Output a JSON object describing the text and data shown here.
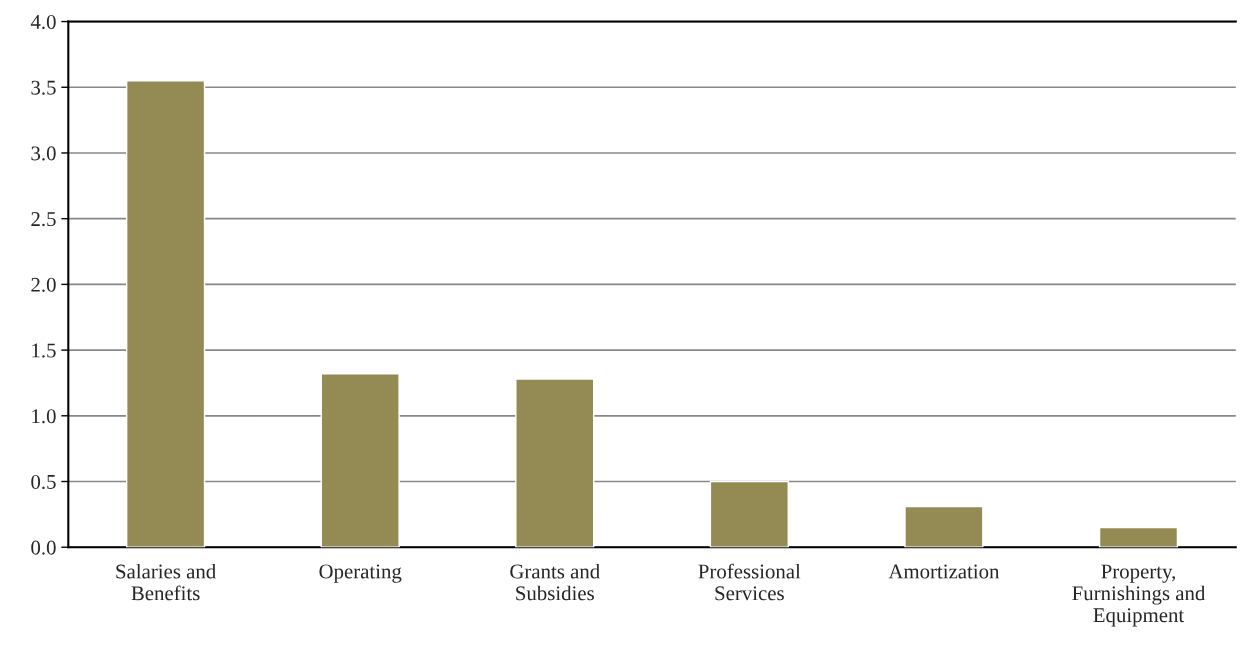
{
  "chart_data": {
    "type": "bar",
    "categories": [
      "Salaries and\nBenefits",
      "Operating",
      "Grants and\nSubsidies",
      "Professional\nServices",
      "Amortization",
      "Property,\nFurnishings and\nEquipment"
    ],
    "values": [
      3.55,
      1.32,
      1.28,
      0.5,
      0.31,
      0.15
    ],
    "color": "#948a54",
    "ylim": [
      0,
      4.0
    ],
    "yticks": [
      {
        "value": 0,
        "label": "0.0"
      },
      {
        "value": 0.5,
        "label": "0.5"
      },
      {
        "value": 1.0,
        "label": "1.0"
      },
      {
        "value": 1.5,
        "label": "1.5"
      },
      {
        "value": 2.0,
        "label": "2.0"
      },
      {
        "value": 2.5,
        "label": "2.5"
      },
      {
        "value": 3.0,
        "label": "3.0"
      },
      {
        "value": 3.5,
        "label": "3.5"
      },
      {
        "value": 4.0,
        "label": "4.0"
      }
    ],
    "grid": "y"
  }
}
